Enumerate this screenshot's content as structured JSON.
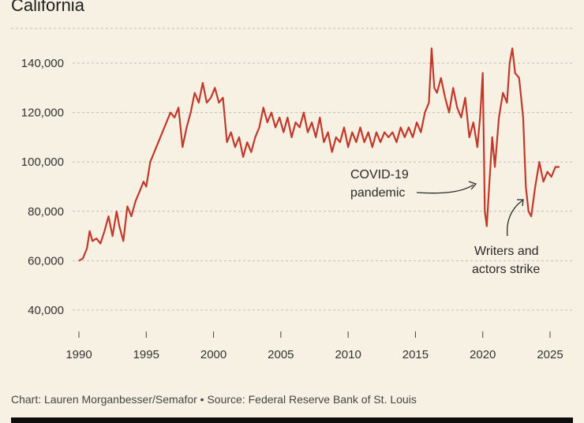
{
  "header": {
    "title": "California"
  },
  "footer": {
    "source": "Chart: Lauren Morganbesser/Semafor • Source: Federal Reserve Bank of St. Louis"
  },
  "colors": {
    "line": "#c0392b",
    "grid": "#bdbdbd",
    "background": "#f7f1e4"
  },
  "chart_data": {
    "type": "line",
    "title": "California",
    "xlabel": "",
    "ylabel": "",
    "xlim": [
      1990,
      2026
    ],
    "ylim": [
      30000,
      150000
    ],
    "grid": true,
    "yticks": [
      40000,
      60000,
      80000,
      100000,
      120000,
      140000
    ],
    "ytick_labels": [
      "40,000",
      "60,000",
      "80,000",
      "100,000",
      "120,000",
      "140,000"
    ],
    "xticks": [
      1990,
      1995,
      2000,
      2005,
      2010,
      2015,
      2020,
      2025
    ],
    "xtick_labels": [
      "1990",
      "1995",
      "2000",
      "2005",
      "2010",
      "2015",
      "2020",
      "2025"
    ],
    "series": [
      {
        "x": [
          1990.0,
          1990.3,
          1990.6,
          1990.8,
          1991.0,
          1991.3,
          1991.6,
          1991.9,
          1992.2,
          1992.5,
          1992.8,
          1993.0,
          1993.3,
          1993.6,
          1993.9,
          1994.2,
          1994.5,
          1994.8,
          1995.0,
          1995.3,
          1995.6,
          1995.9,
          1996.2,
          1996.5,
          1996.8,
          1997.1,
          1997.4,
          1997.7,
          1998.0,
          1998.3,
          1998.6,
          1998.9,
          1999.2,
          1999.5,
          1999.8,
          2000.1,
          2000.4,
          2000.7,
          2001.0,
          2001.3,
          2001.6,
          2001.9,
          2002.2,
          2002.5,
          2002.8,
          2003.1,
          2003.4,
          2003.7,
          2004.0,
          2004.3,
          2004.6,
          2004.9,
          2005.2,
          2005.5,
          2005.8,
          2006.1,
          2006.4,
          2006.7,
          2007.0,
          2007.3,
          2007.6,
          2007.9,
          2008.2,
          2008.5,
          2008.8,
          2009.1,
          2009.4,
          2009.7,
          2010.0,
          2010.3,
          2010.6,
          2010.9,
          2011.2,
          2011.5,
          2011.8,
          2012.1,
          2012.4,
          2012.7,
          2013.0,
          2013.3,
          2013.6,
          2013.9,
          2014.2,
          2014.5,
          2014.8,
          2015.1,
          2015.4,
          2015.7,
          2016.0,
          2016.2,
          2016.4,
          2016.6,
          2016.9,
          2017.2,
          2017.5,
          2017.8,
          2018.1,
          2018.4,
          2018.7,
          2019.0,
          2019.3,
          2019.6,
          2019.8,
          2020.0,
          2020.15,
          2020.3,
          2020.5,
          2020.7,
          2020.9,
          2021.2,
          2021.5,
          2021.8,
          2022.0,
          2022.2,
          2022.4,
          2022.7,
          2023.0,
          2023.2,
          2023.4,
          2023.6,
          2023.9,
          2024.2,
          2024.5,
          2024.8,
          2025.1,
          2025.4,
          2025.7
        ],
        "values": [
          60000,
          61000,
          65000,
          72000,
          68000,
          69000,
          67000,
          72000,
          78000,
          70000,
          80000,
          74000,
          68000,
          82000,
          78000,
          84000,
          88000,
          92000,
          90000,
          100000,
          104000,
          108000,
          112000,
          116000,
          120000,
          118000,
          122000,
          106000,
          114000,
          120000,
          128000,
          124000,
          132000,
          124000,
          126000,
          130000,
          124000,
          126000,
          108000,
          112000,
          106000,
          110000,
          102000,
          108000,
          104000,
          110000,
          114000,
          122000,
          116000,
          120000,
          114000,
          118000,
          112000,
          118000,
          110000,
          116000,
          114000,
          120000,
          112000,
          116000,
          110000,
          118000,
          108000,
          112000,
          104000,
          110000,
          108000,
          114000,
          106000,
          112000,
          108000,
          114000,
          108000,
          112000,
          106000,
          112000,
          108000,
          112000,
          110000,
          112000,
          108000,
          114000,
          110000,
          114000,
          110000,
          116000,
          112000,
          120000,
          124000,
          146000,
          130000,
          128000,
          134000,
          126000,
          120000,
          130000,
          122000,
          118000,
          126000,
          110000,
          116000,
          106000,
          118000,
          136000,
          80000,
          74000,
          92000,
          110000,
          98000,
          118000,
          128000,
          124000,
          140000,
          146000,
          136000,
          134000,
          118000,
          90000,
          80000,
          78000,
          90000,
          100000,
          92000,
          96000,
          94000,
          98000,
          98000
        ]
      }
    ],
    "annotations": [
      {
        "text_lines": [
          "COVID-19",
          "pandemic"
        ]
      },
      {
        "text_lines": [
          "Writers and",
          "actors strike"
        ]
      }
    ]
  }
}
